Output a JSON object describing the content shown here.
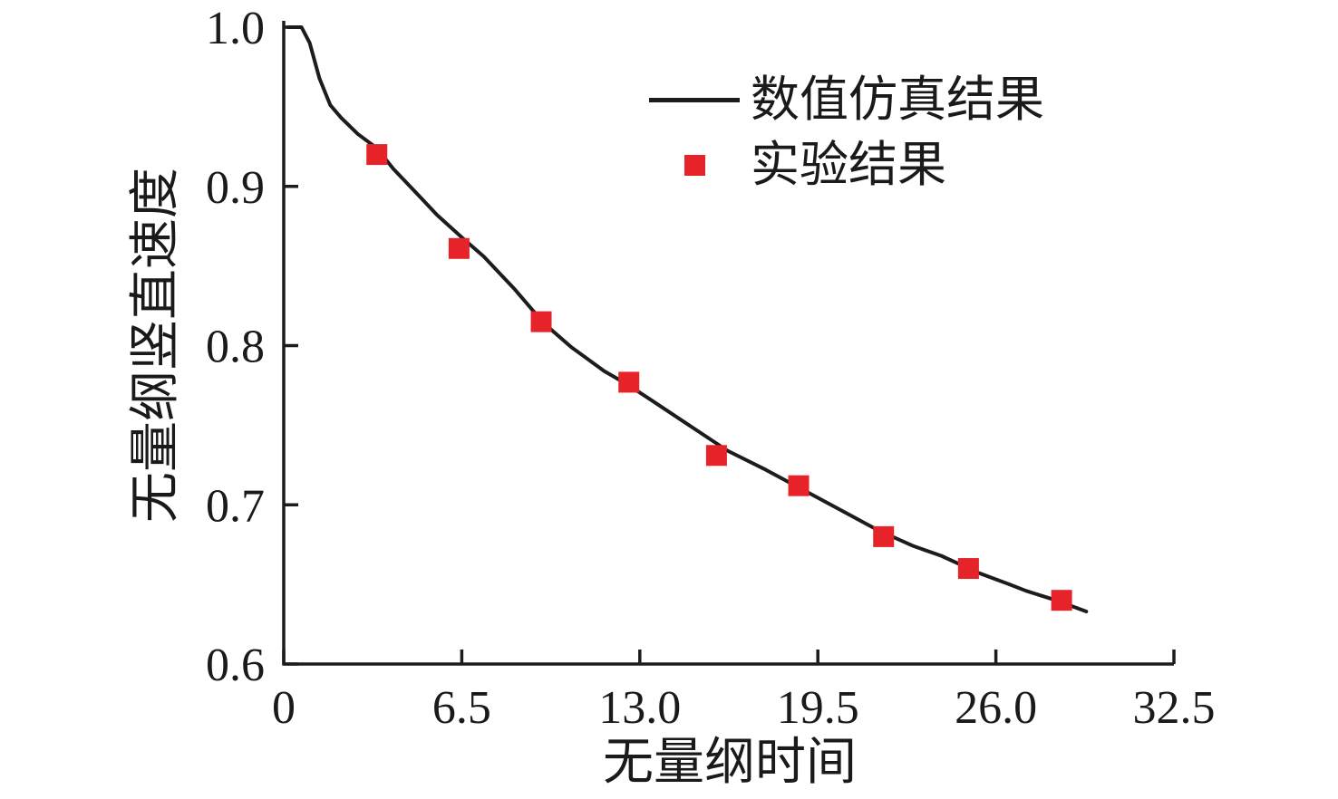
{
  "chart_data": {
    "type": "line",
    "title": "",
    "xlabel": "无量纲时间",
    "ylabel": "无量纲竖直速度",
    "xlim": [
      0,
      32.5
    ],
    "ylim": [
      0.6,
      1.0
    ],
    "x_ticks": {
      "values": [
        0,
        6.5,
        13.0,
        19.5,
        26.0,
        32.5
      ],
      "labels": [
        "0",
        "6.5",
        "13.0",
        "19.5",
        "26.0",
        "32.5"
      ]
    },
    "y_ticks": {
      "values": [
        0.6,
        0.7,
        0.8,
        0.9,
        1.0
      ],
      "labels": [
        "0.6",
        "0.7",
        "0.8",
        "0.9",
        "1.0"
      ]
    },
    "grid": false,
    "legend_position": "inside-upper-right",
    "axis_color": "#1c1c1c",
    "text_color": "#1a1a1a",
    "background": "#ffffff",
    "series": [
      {
        "name": "数值仿真结果",
        "type": "line",
        "color": "#1c1c1c",
        "line_width": 4,
        "points": [
          [
            0.15,
            1.0
          ],
          [
            0.65,
            1.0
          ],
          [
            0.95,
            0.99
          ],
          [
            1.3,
            0.968
          ],
          [
            1.7,
            0.951
          ],
          [
            2.1,
            0.943
          ],
          [
            2.7,
            0.933
          ],
          [
            3.4,
            0.924
          ],
          [
            4.0,
            0.911
          ],
          [
            5.0,
            0.893
          ],
          [
            5.6,
            0.882
          ],
          [
            6.5,
            0.868
          ],
          [
            7.3,
            0.856
          ],
          [
            8.4,
            0.836
          ],
          [
            9.5,
            0.814
          ],
          [
            10.5,
            0.799
          ],
          [
            11.7,
            0.784
          ],
          [
            12.6,
            0.775
          ],
          [
            13.4,
            0.766
          ],
          [
            14.8,
            0.75
          ],
          [
            16.2,
            0.734
          ],
          [
            17.6,
            0.722
          ],
          [
            18.9,
            0.71
          ],
          [
            20.3,
            0.697
          ],
          [
            21.7,
            0.684
          ],
          [
            23.0,
            0.674
          ],
          [
            24.0,
            0.668
          ],
          [
            25.4,
            0.657
          ],
          [
            26.5,
            0.65
          ],
          [
            27.1,
            0.646
          ],
          [
            28.2,
            0.64
          ],
          [
            29.3,
            0.633
          ]
        ]
      },
      {
        "name": "实验结果",
        "type": "scatter",
        "marker": "square",
        "color": "#e62328",
        "marker_size": 23,
        "points": [
          [
            3.4,
            0.92
          ],
          [
            6.4,
            0.861
          ],
          [
            9.4,
            0.815
          ],
          [
            12.6,
            0.777
          ],
          [
            15.8,
            0.731
          ],
          [
            18.8,
            0.712
          ],
          [
            21.9,
            0.68
          ],
          [
            25.0,
            0.66
          ],
          [
            28.4,
            0.64
          ]
        ]
      }
    ]
  }
}
